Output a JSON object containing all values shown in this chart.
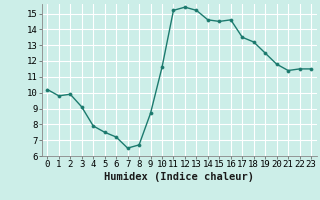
{
  "x": [
    0,
    1,
    2,
    3,
    4,
    5,
    6,
    7,
    8,
    9,
    10,
    11,
    12,
    13,
    14,
    15,
    16,
    17,
    18,
    19,
    20,
    21,
    22,
    23
  ],
  "y": [
    10.2,
    9.8,
    9.9,
    9.1,
    7.9,
    7.5,
    7.2,
    6.5,
    6.7,
    8.7,
    11.6,
    15.2,
    15.4,
    15.2,
    14.6,
    14.5,
    14.6,
    13.5,
    13.2,
    12.5,
    11.8,
    11.4,
    11.5,
    11.5
  ],
  "line_color": "#1c7a6e",
  "marker": "o",
  "marker_size": 2.2,
  "bg_color": "#cceee8",
  "grid_color": "#ffffff",
  "xlabel": "Humidex (Indice chaleur)",
  "ylim": [
    6,
    15.6
  ],
  "xlim": [
    -0.5,
    23.5
  ],
  "yticks": [
    6,
    7,
    8,
    9,
    10,
    11,
    12,
    13,
    14,
    15
  ],
  "xticks": [
    0,
    1,
    2,
    3,
    4,
    5,
    6,
    7,
    8,
    9,
    10,
    11,
    12,
    13,
    14,
    15,
    16,
    17,
    18,
    19,
    20,
    21,
    22,
    23
  ],
  "tick_fontsize": 6.5,
  "xlabel_fontsize": 7.5,
  "line_width": 1.0
}
